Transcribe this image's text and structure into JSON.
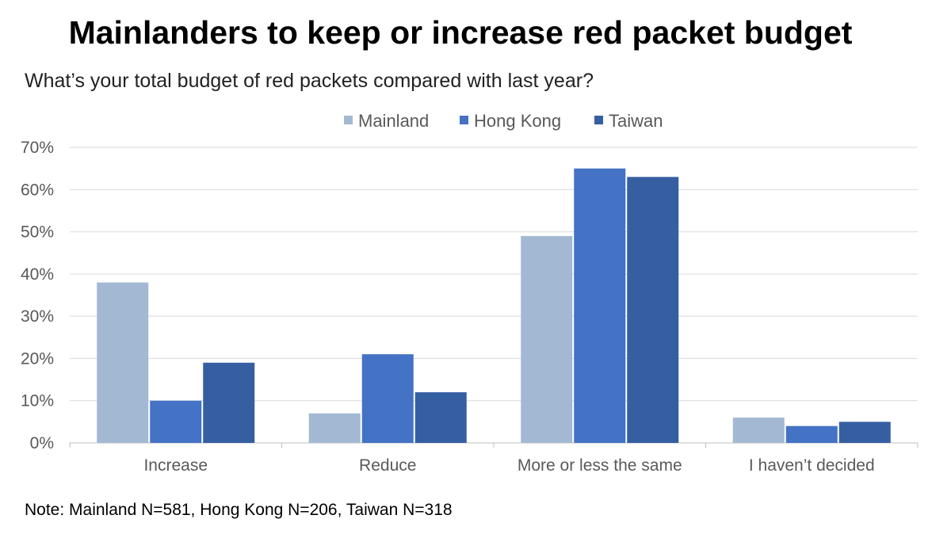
{
  "chart_data": {
    "type": "bar",
    "title": "Mainlanders to keep or increase red packet budget",
    "subtitle": "What’s your total budget of red packets compared with last year?",
    "categories": [
      "Increase",
      "Reduce",
      "More or less the same",
      "I haven’t decided"
    ],
    "series": [
      {
        "name": "Mainland",
        "color": "#A3B9D3",
        "values": [
          38,
          7,
          49,
          6
        ]
      },
      {
        "name": "Hong Kong",
        "color": "#4472C4",
        "values": [
          10,
          21,
          65,
          4
        ]
      },
      {
        "name": "Taiwan",
        "color": "#365FA2",
        "values": [
          19,
          12,
          63,
          5
        ]
      }
    ],
    "ylim": [
      0,
      70
    ],
    "yticks": [
      "0%",
      "10%",
      "20%",
      "30%",
      "40%",
      "50%",
      "60%",
      "70%"
    ],
    "unit": "%",
    "grid": true,
    "legend_position": "top",
    "note": "Note: Mainland N=581, Hong Kong N=206, Taiwan N=318"
  }
}
